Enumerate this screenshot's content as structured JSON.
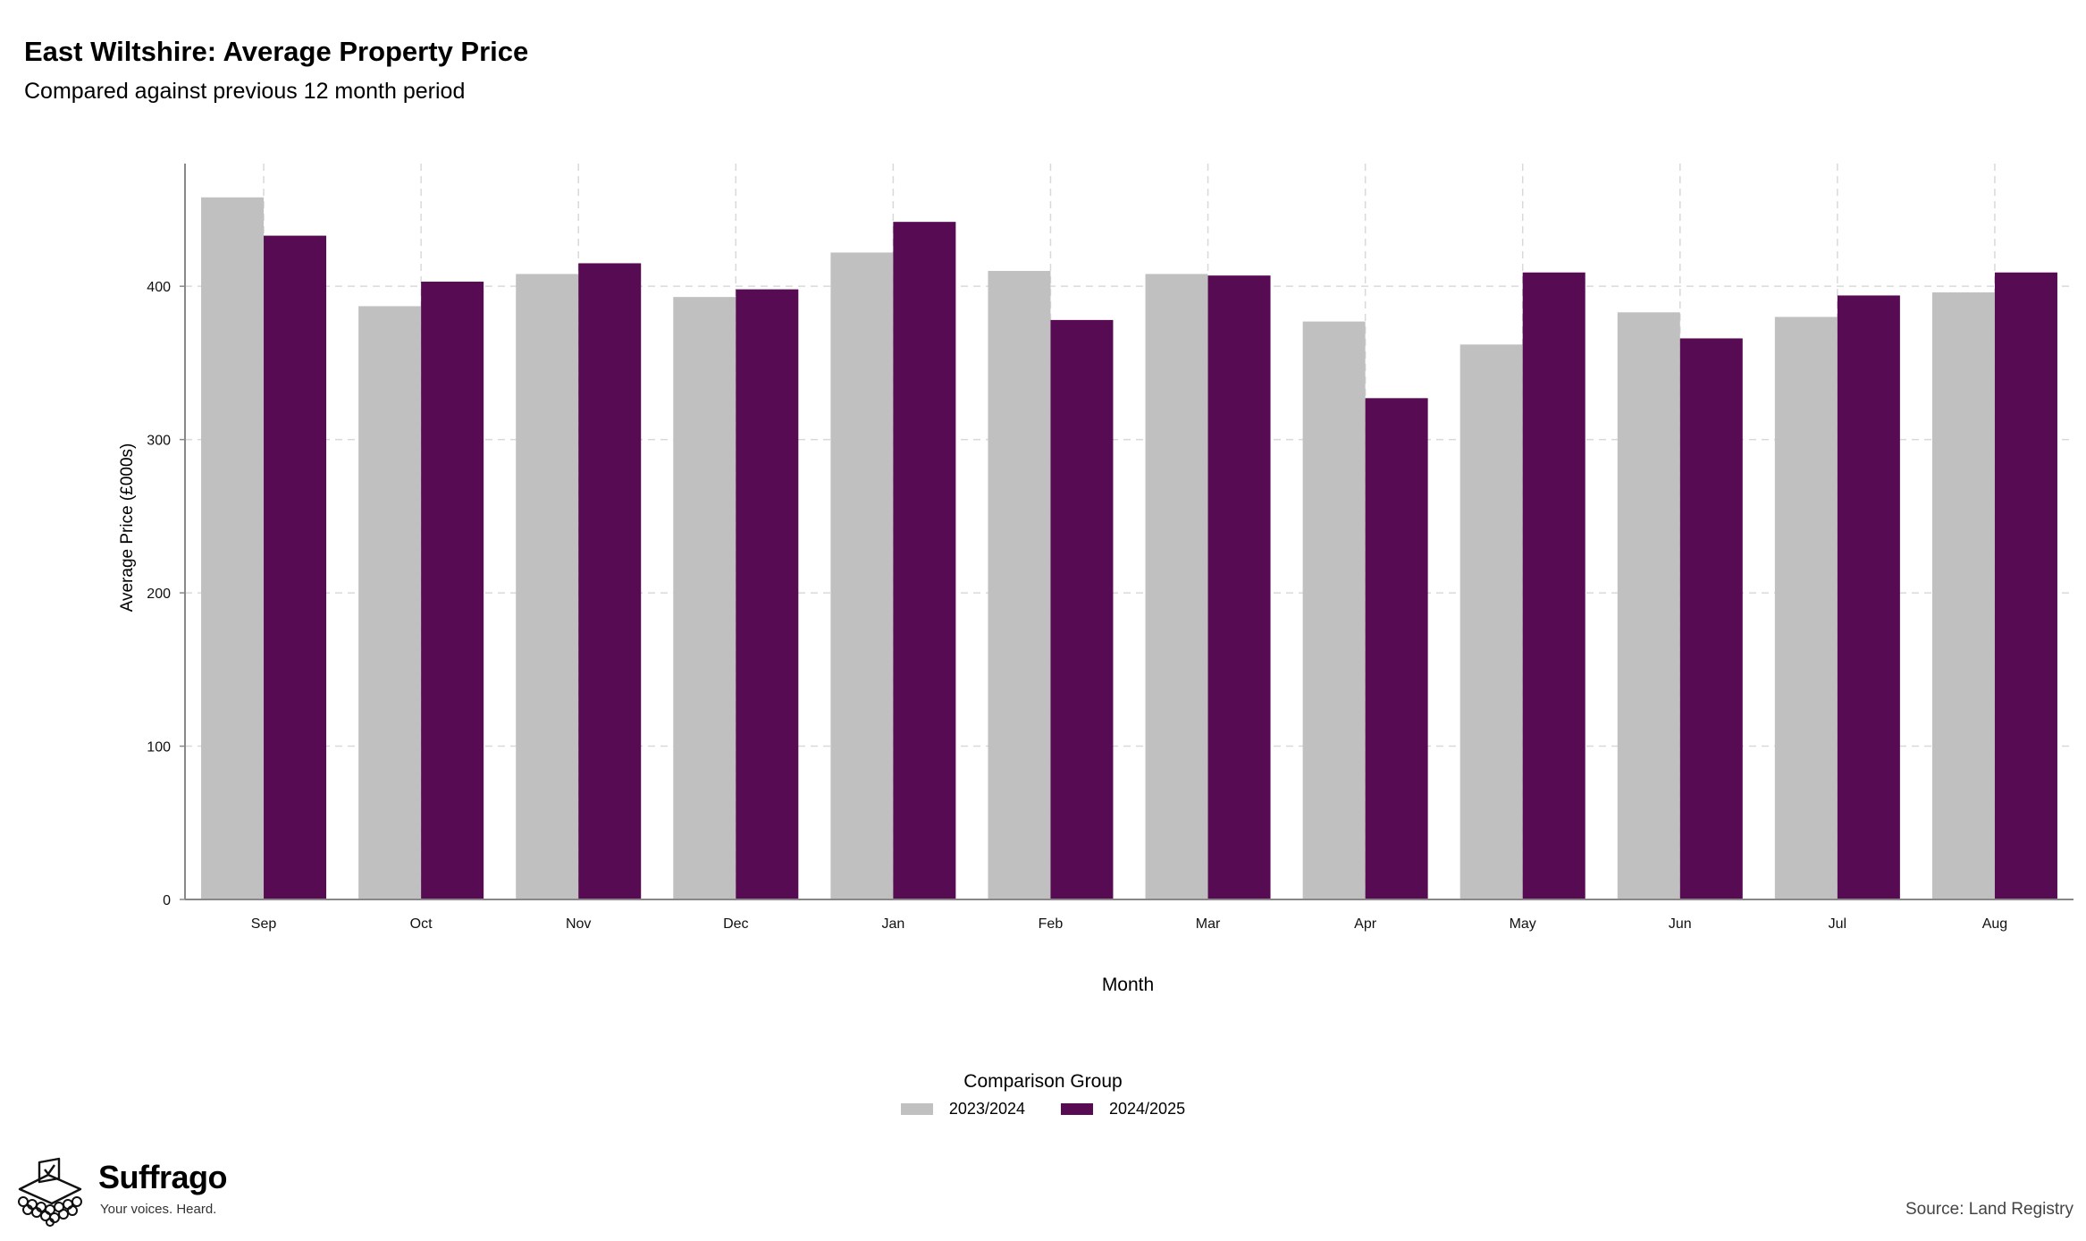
{
  "header": {
    "title": "East Wiltshire: Average Property Price",
    "subtitle": "Compared against previous 12 month period"
  },
  "chart_data": {
    "type": "bar",
    "categories": [
      "Sep",
      "Oct",
      "Nov",
      "Dec",
      "Jan",
      "Feb",
      "Mar",
      "Apr",
      "May",
      "Jun",
      "Jul",
      "Aug"
    ],
    "series": [
      {
        "name": "2023/2024",
        "color": "#c0c0c0",
        "values": [
          458,
          387,
          408,
          393,
          422,
          410,
          408,
          377,
          362,
          383,
          380,
          396
        ]
      },
      {
        "name": "2024/2025",
        "color": "#560b52",
        "values": [
          433,
          403,
          415,
          398,
          442,
          378,
          407,
          327,
          409,
          366,
          394,
          409
        ]
      }
    ],
    "xlabel": "Month",
    "ylabel": "Average Price (£000s)",
    "ylim": [
      0,
      480
    ],
    "yticks": [
      0,
      100,
      200,
      300,
      400
    ],
    "grid": true,
    "legend_title": "Comparison Group",
    "legend_position": "bottom"
  },
  "branding": {
    "name": "Suffrago",
    "tagline": "Your voices. Heard."
  },
  "source": "Source: Land Registry"
}
